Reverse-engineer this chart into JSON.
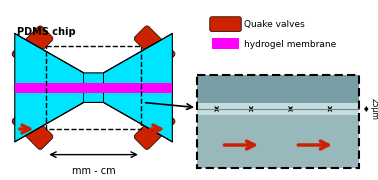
{
  "fig_width": 3.78,
  "fig_height": 1.8,
  "dpi": 100,
  "bg_color": "#ffffff",
  "pdms_color": "#00e5ff",
  "quake_valve_color": "#cc2200",
  "hydrogel_color": "#ff00ff",
  "arrow_color": "#cc2200",
  "black": "#000000",
  "micro_bg_upper": "#8aabb0",
  "micro_bg_lower": "#a0bfc0",
  "micro_channel_upper": "#b8d4d8",
  "micro_channel_lower": "#c8dfe0",
  "title_text": "PDMS chip",
  "legend_valve": "Quake valves",
  "legend_hydrogel": "hydrogel membrane",
  "scale_text": "25μm",
  "dim_text": "mm - cm"
}
